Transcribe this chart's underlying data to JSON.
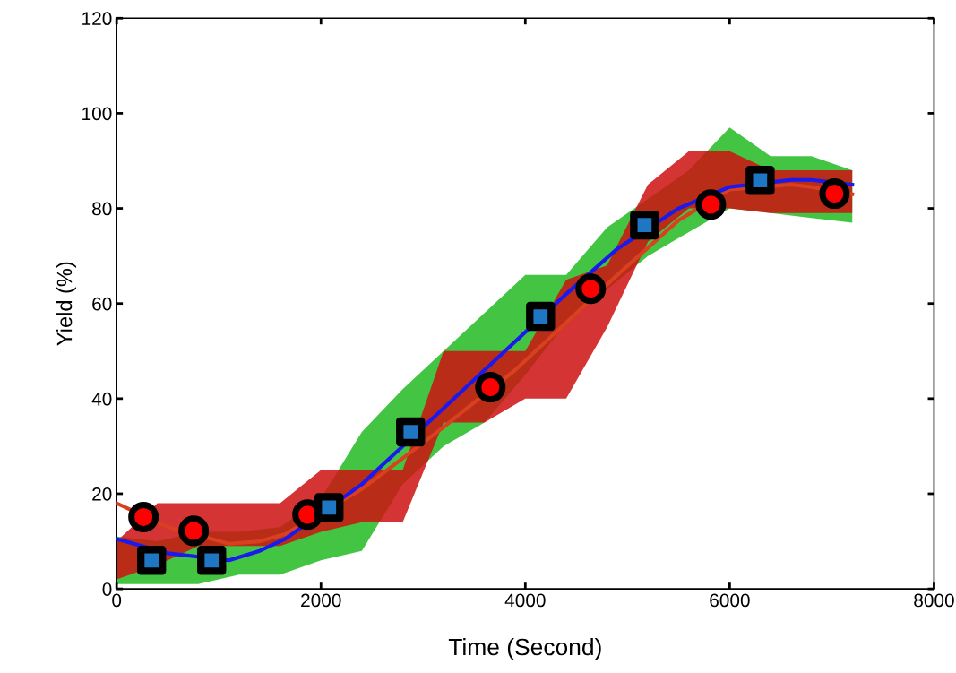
{
  "chart_data": {
    "type": "scatter",
    "xlabel": "Time (Second)",
    "ylabel": "Yield (%)",
    "xlim": [
      0,
      8000
    ],
    "ylim": [
      0,
      120
    ],
    "xticks": [
      0,
      2000,
      4000,
      6000,
      8000
    ],
    "yticks": [
      0,
      20,
      40,
      60,
      80,
      100,
      120
    ],
    "grid": false,
    "legend": false,
    "series": [
      {
        "type": "line",
        "color": "#22bb22",
        "x": [
          0,
          400,
          800,
          1200,
          1600,
          2000,
          2400,
          2800,
          3200,
          3600,
          4000,
          4400,
          4800,
          5200,
          5600,
          6000,
          6400,
          6800,
          7200
        ],
        "lower": [
          1,
          1,
          1,
          3,
          3,
          6,
          8,
          22,
          30,
          35,
          45,
          56,
          63,
          70,
          75,
          80,
          79,
          78,
          77
        ],
        "upper": [
          11,
          10,
          12,
          12,
          13,
          19,
          33,
          42,
          50,
          58,
          66,
          66,
          76,
          82,
          88,
          97,
          91,
          91,
          88
        ],
        "values": [
          null,
          null,
          null,
          null,
          null,
          null,
          null,
          null,
          null,
          null,
          null,
          null,
          null,
          null,
          null,
          null,
          null,
          null,
          null
        ]
      },
      {
        "type": "line",
        "color": "#cc1111",
        "x": [
          0,
          400,
          800,
          1200,
          1600,
          2000,
          2400,
          2800,
          3200,
          3600,
          4000,
          4400,
          4800,
          5200,
          5600,
          6000,
          6400,
          6800,
          7200
        ],
        "lower": [
          2,
          5,
          9,
          9,
          9,
          12,
          14,
          14,
          35,
          35,
          40,
          40,
          55,
          73,
          80,
          80,
          79,
          79,
          79
        ],
        "upper": [
          10,
          18,
          18,
          18,
          18,
          25,
          25,
          25,
          50,
          50,
          50,
          65,
          68,
          85,
          92,
          92,
          88,
          88,
          88
        ],
        "values": [
          null,
          null,
          null,
          null,
          null,
          null,
          null,
          null,
          null,
          null,
          null,
          null,
          null,
          null,
          null,
          null,
          null,
          null,
          null
        ]
      },
      {
        "type": "line",
        "color": "#d94020",
        "marker": "none",
        "x": [
          0,
          500,
          1100,
          1400,
          1650,
          2400,
          2650,
          3200,
          3400,
          3900,
          4400,
          4900,
          5500,
          6000,
          6600,
          6800,
          7200
        ],
        "values": [
          18,
          13,
          9.5,
          10,
          11.5,
          21,
          25,
          34,
          37.5,
          46,
          56,
          66,
          77.5,
          84,
          85,
          84.5,
          83
        ]
      },
      {
        "type": "line",
        "color": "#1a1aee",
        "marker": "none",
        "x": [
          0,
          500,
          1100,
          1400,
          1650,
          2400,
          2650,
          3200,
          3400,
          3900,
          4400,
          4900,
          5500,
          6000,
          6600,
          6800,
          7200
        ],
        "values": [
          10.5,
          7.5,
          6,
          8,
          10.5,
          22,
          27,
          38,
          42,
          52,
          62,
          71.5,
          80,
          84.5,
          86,
          86,
          85
        ]
      },
      {
        "marker": "circle",
        "color": "#ff0000",
        "x": [
          263,
          754,
          1868,
          3658,
          4640,
          5816,
          7026
        ],
        "values": [
          15.1,
          12.2,
          15.6,
          42.4,
          63.1,
          80.8,
          83.1
        ]
      },
      {
        "marker": "square",
        "color": "#1f77c4",
        "x": [
          342,
          930,
          2079,
          2877,
          4149,
          5167,
          6298
        ],
        "values": [
          6.0,
          6.0,
          17.1,
          33.0,
          57.3,
          76.5,
          85.9
        ]
      }
    ]
  }
}
